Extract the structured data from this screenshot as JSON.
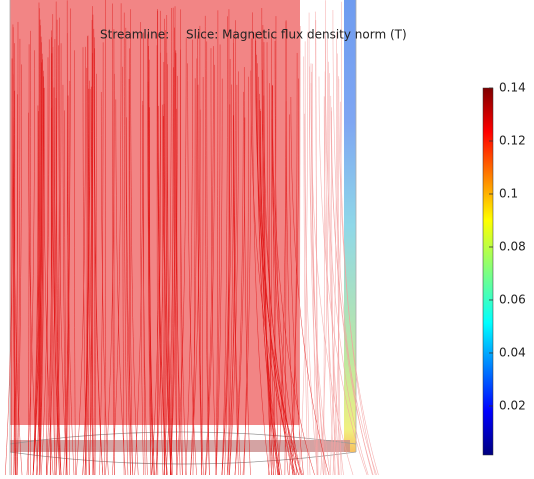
{
  "plot": {
    "title_prefix": "Streamline:",
    "title": "Slice: Magnetic flux density norm (T)"
  },
  "colorbar": {
    "clim": [
      0.0015,
      0.14
    ],
    "ticks": [
      0.14,
      0.12,
      0.1,
      0.08,
      0.06,
      0.04,
      0.02
    ]
  }
}
